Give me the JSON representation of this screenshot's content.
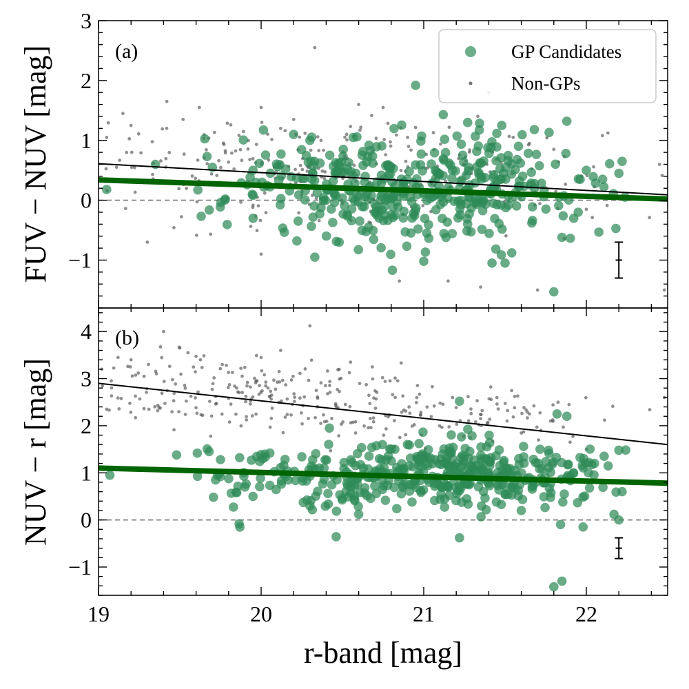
{
  "figure": {
    "xlabel": "r-band [mag]",
    "xlim": [
      19,
      22.5
    ],
    "xticks": [
      19,
      20,
      21,
      22
    ],
    "xtick_labels": [
      "19",
      "20",
      "21",
      "22"
    ],
    "colors": {
      "gp": "#2e8b57",
      "nongp": "#555555",
      "fit_gp": "#006400",
      "fit_nongp": "#000000",
      "zero": "#808080"
    }
  },
  "chart_data": [
    {
      "type": "scatter",
      "panel_label": "(a)",
      "ylabel": "FUV − NUV [mag]",
      "ylim": [
        -1.8,
        3
      ],
      "yticks": [
        -1,
        0,
        1,
        2,
        3
      ],
      "ytick_labels": [
        "−1",
        "0",
        "1",
        "2",
        "3"
      ],
      "legend": {
        "position": "top-right",
        "entries": [
          "GP Candidates",
          "Non-GPs"
        ]
      },
      "gp_fit": {
        "x": [
          19,
          22.5
        ],
        "y": [
          0.34,
          0.02
        ]
      },
      "nongp_fit": {
        "x": [
          19,
          22.5
        ],
        "y": [
          0.61,
          0.09
        ]
      },
      "zero_line": 0,
      "error_bar": {
        "x": 22.2,
        "y": -1.0,
        "yerr": 0.3,
        "xerr": 0.02
      },
      "gp_cloud": [
        {
          "cx": 21.1,
          "cy": 0.15,
          "sx": 0.45,
          "sy": 0.45,
          "n": 330
        },
        {
          "cx": 20.5,
          "cy": 0.35,
          "sx": 0.45,
          "sy": 0.4,
          "n": 100
        }
      ],
      "nongp_cloud": [
        {
          "cx": 20.0,
          "cy": 0.55,
          "sx": 0.55,
          "sy": 0.4,
          "n": 170
        },
        {
          "cx": 21.0,
          "cy": 0.35,
          "sx": 0.6,
          "sy": 0.45,
          "n": 130
        }
      ],
      "gp_points": [
        {
          "x": 19.05,
          "y": 0.18
        },
        {
          "x": 19.35,
          "y": 0.6
        },
        {
          "x": 19.7,
          "y": 0.55
        },
        {
          "x": 19.78,
          "y": 0.02
        },
        {
          "x": 19.95,
          "y": 0.5
        },
        {
          "x": 20.2,
          "y": 1.1
        },
        {
          "x": 20.3,
          "y": 1.0
        },
        {
          "x": 20.22,
          "y": -0.68
        },
        {
          "x": 20.33,
          "y": -0.95
        },
        {
          "x": 20.48,
          "y": -0.7
        },
        {
          "x": 20.95,
          "y": 1.92
        },
        {
          "x": 21.12,
          "y": 1.43
        },
        {
          "x": 21.27,
          "y": 1.3
        },
        {
          "x": 21.48,
          "y": 1.25
        },
        {
          "x": 21.68,
          "y": 1.18
        },
        {
          "x": 21.88,
          "y": 1.32
        },
        {
          "x": 21.8,
          "y": -1.53
        },
        {
          "x": 21.42,
          "y": -1.05
        },
        {
          "x": 21.5,
          "y": -1.05
        },
        {
          "x": 21.0,
          "y": -1.02
        },
        {
          "x": 22.0,
          "y": 0.5
        },
        {
          "x": 22.1,
          "y": 0.35
        },
        {
          "x": 22.2,
          "y": 0.45
        },
        {
          "x": 22.22,
          "y": 0.65
        },
        {
          "x": 21.95,
          "y": -0.2
        },
        {
          "x": 21.85,
          "y": -0.62
        }
      ],
      "nongp_points": [
        {
          "x": 19.05,
          "y": 1.05
        },
        {
          "x": 19.15,
          "y": 1.45
        },
        {
          "x": 19.2,
          "y": 1.25
        },
        {
          "x": 19.3,
          "y": -0.7
        },
        {
          "x": 19.42,
          "y": 1.65
        },
        {
          "x": 19.52,
          "y": 1.35
        },
        {
          "x": 19.62,
          "y": 1.55
        },
        {
          "x": 20.0,
          "y": 1.55
        },
        {
          "x": 20.2,
          "y": 1.35
        },
        {
          "x": 20.12,
          "y": 1.2
        },
        {
          "x": 20.33,
          "y": 2.55
        },
        {
          "x": 20.6,
          "y": 1.6
        },
        {
          "x": 20.75,
          "y": 1.55
        },
        {
          "x": 21.4,
          "y": 1.8
        },
        {
          "x": 20.0,
          "y": -0.9
        },
        {
          "x": 20.85,
          "y": -1.35
        },
        {
          "x": 21.15,
          "y": -1.35
        },
        {
          "x": 21.35,
          "y": -1.45
        },
        {
          "x": 21.7,
          "y": -1.5
        },
        {
          "x": 22.48,
          "y": -1.5
        },
        {
          "x": 22.45,
          "y": 0.6
        },
        {
          "x": 21.55,
          "y": 1.05
        },
        {
          "x": 21.65,
          "y": 0.95
        },
        {
          "x": 21.8,
          "y": 0.85
        }
      ]
    },
    {
      "type": "scatter",
      "panel_label": "(b)",
      "ylabel": "NUV − r [mag]",
      "ylim": [
        -1.6,
        4.5
      ],
      "yticks": [
        -1,
        0,
        1,
        2,
        3,
        4
      ],
      "ytick_labels": [
        "−1",
        "0",
        "1",
        "2",
        "3",
        "4"
      ],
      "gp_fit": {
        "x": [
          19,
          22.5
        ],
        "y": [
          1.1,
          0.78
        ]
      },
      "nongp_fit": {
        "x": [
          19,
          22.5
        ],
        "y": [
          2.9,
          1.6
        ]
      },
      "zero_line": 0,
      "error_bar": {
        "x": 22.2,
        "y": -0.6,
        "yerr": 0.22,
        "xerr": 0.02
      },
      "gp_cloud": [
        {
          "cx": 21.2,
          "cy": 1.0,
          "sx": 0.45,
          "sy": 0.35,
          "n": 340
        },
        {
          "cx": 20.5,
          "cy": 0.85,
          "sx": 0.45,
          "sy": 0.35,
          "n": 110
        }
      ],
      "nongp_cloud": [
        {
          "cx": 19.9,
          "cy": 2.75,
          "sx": 0.55,
          "sy": 0.35,
          "n": 190
        },
        {
          "cx": 21.0,
          "cy": 2.25,
          "sx": 0.6,
          "sy": 0.3,
          "n": 130
        }
      ],
      "gp_points": [
        {
          "x": 19.07,
          "y": 0.95
        },
        {
          "x": 19.48,
          "y": 1.38
        },
        {
          "x": 19.68,
          "y": 1.45
        },
        {
          "x": 19.75,
          "y": 1.28
        },
        {
          "x": 19.72,
          "y": 0.85
        },
        {
          "x": 19.85,
          "y": 0.58
        },
        {
          "x": 19.9,
          "y": 0.7
        },
        {
          "x": 19.95,
          "y": 0.5
        },
        {
          "x": 21.22,
          "y": 2.52
        },
        {
          "x": 21.82,
          "y": 2.25
        },
        {
          "x": 21.88,
          "y": 2.2
        },
        {
          "x": 21.85,
          "y": -1.3
        },
        {
          "x": 21.8,
          "y": -1.42
        },
        {
          "x": 21.98,
          "y": -0.15
        },
        {
          "x": 21.22,
          "y": -0.38
        },
        {
          "x": 22.2,
          "y": 0.0
        },
        {
          "x": 22.17,
          "y": 0.12
        },
        {
          "x": 22.22,
          "y": 0.6
        },
        {
          "x": 22.2,
          "y": 1.48
        },
        {
          "x": 22.05,
          "y": 1.2
        },
        {
          "x": 20.6,
          "y": 0.12
        },
        {
          "x": 20.3,
          "y": 0.3
        },
        {
          "x": 21.6,
          "y": 0.2
        }
      ],
      "nongp_points": [
        {
          "x": 19.02,
          "y": 3.2
        },
        {
          "x": 19.05,
          "y": 2.35
        },
        {
          "x": 19.12,
          "y": 3.45
        },
        {
          "x": 19.2,
          "y": 3.4
        },
        {
          "x": 19.28,
          "y": 3.05
        },
        {
          "x": 19.4,
          "y": 4.0
        },
        {
          "x": 19.5,
          "y": 3.65
        },
        {
          "x": 19.55,
          "y": 3.55
        },
        {
          "x": 20.12,
          "y": 3.6
        },
        {
          "x": 20.0,
          "y": 3.45
        },
        {
          "x": 20.3,
          "y": 4.12
        },
        {
          "x": 20.55,
          "y": 3.35
        },
        {
          "x": 21.35,
          "y": 2.15
        },
        {
          "x": 21.45,
          "y": 2.6
        },
        {
          "x": 21.65,
          "y": 2.25
        },
        {
          "x": 21.72,
          "y": 1.9
        },
        {
          "x": 21.78,
          "y": 2.1
        },
        {
          "x": 22.48,
          "y": 2.6
        },
        {
          "x": 21.9,
          "y": 1.65
        },
        {
          "x": 22.0,
          "y": 1.5
        }
      ]
    }
  ]
}
